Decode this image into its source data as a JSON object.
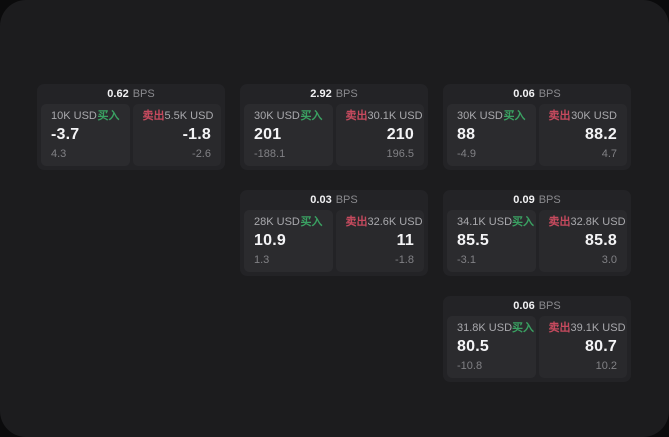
{
  "labels": {
    "bps_unit": "BPS",
    "buy_tag": "买入",
    "sell_tag": "卖出"
  },
  "colors": {
    "window_bg": "#1c1c1e",
    "card_bg": "#232326",
    "buy_panel_bg": "#2b2b2e",
    "sell_panel_bg": "#29292c",
    "buy_accent": "#3aa162",
    "sell_accent": "#c64a5e"
  },
  "cards": [
    {
      "bps": "0.62",
      "buy": {
        "amount": "10K USD",
        "value": "-3.7",
        "sub": "4.3"
      },
      "sell": {
        "amount": "5.5K USD",
        "value": "-1.8",
        "sub": "-2.6"
      }
    },
    {
      "bps": "2.92",
      "buy": {
        "amount": "30K USD",
        "value": "201",
        "sub": "-188.1"
      },
      "sell": {
        "amount": "30.1K USD",
        "value": "210",
        "sub": "196.5"
      }
    },
    {
      "bps": "0.06",
      "buy": {
        "amount": "30K USD",
        "value": "88",
        "sub": "-4.9"
      },
      "sell": {
        "amount": "30K USD",
        "value": "88.2",
        "sub": "4.7"
      }
    },
    {
      "bps": "0.03",
      "buy": {
        "amount": "28K USD",
        "value": "10.9",
        "sub": "1.3"
      },
      "sell": {
        "amount": "32.6K USD",
        "value": "11",
        "sub": "-1.8"
      }
    },
    {
      "bps": "0.09",
      "buy": {
        "amount": "34.1K USD",
        "value": "85.5",
        "sub": "-3.1"
      },
      "sell": {
        "amount": "32.8K USD",
        "value": "85.8",
        "sub": "3.0"
      }
    },
    {
      "bps": "0.06",
      "buy": {
        "amount": "31.8K USD",
        "value": "80.5",
        "sub": "-10.8"
      },
      "sell": {
        "amount": "39.1K USD",
        "value": "80.7",
        "sub": "10.2"
      }
    }
  ]
}
